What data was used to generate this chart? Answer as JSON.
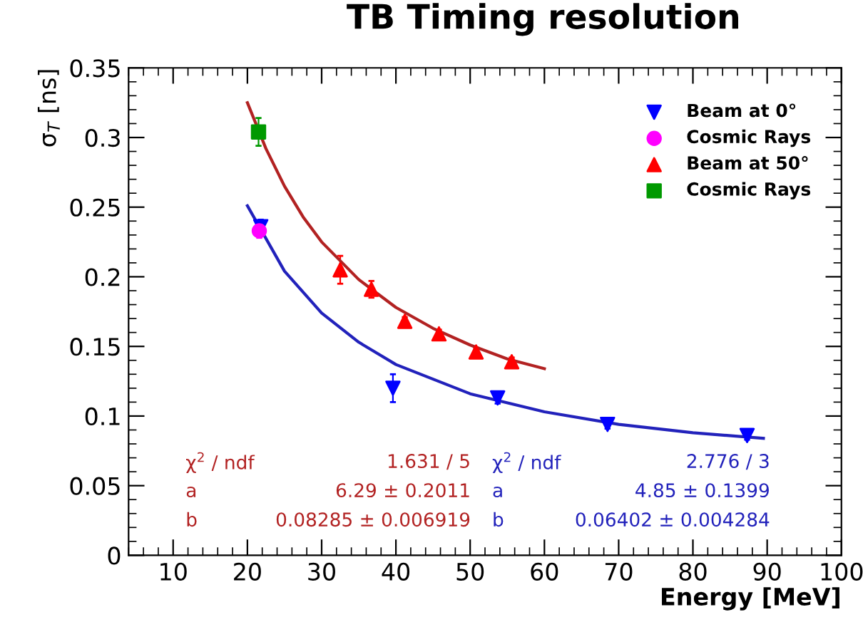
{
  "chart_data": {
    "type": "scatter",
    "title": "TB Timing resolution",
    "xlabel": "Energy [MeV]",
    "ylabel": "σ$_{T}$ [ns]",
    "xlim": [
      4,
      100
    ],
    "xticks": [
      10,
      20,
      30,
      40,
      50,
      60,
      70,
      80,
      90,
      100
    ],
    "ylim": [
      0,
      0.35
    ],
    "yticks": [
      0,
      0.05,
      0.1,
      0.15,
      0.2,
      0.25,
      0.3,
      0.35
    ],
    "grid": false,
    "legend": "top right",
    "series": [
      {
        "name": "Beam at 0°",
        "marker": "triangle_down",
        "color": "#0000ff",
        "x": [
          21.8,
          39.6,
          53.7,
          68.5,
          87.3
        ],
        "values": [
          0.236,
          0.12,
          0.113,
          0.094,
          0.086
        ],
        "errors": [
          0.005,
          0.01,
          0.004,
          0.003,
          0.003
        ]
      },
      {
        "name": "Cosmic Rays",
        "marker": "circle",
        "color": "#ff00ff",
        "x": [
          21.6
        ],
        "values": [
          0.233
        ],
        "errors": [
          0.005
        ]
      },
      {
        "name": "Beam at 50°",
        "marker": "triangle",
        "color": "#ff0000",
        "x": [
          32.5,
          36.7,
          41.2,
          45.8,
          50.8,
          55.6
        ],
        "values": [
          0.205,
          0.191,
          0.168,
          0.159,
          0.146,
          0.139
        ],
        "errors": [
          0.01,
          0.006,
          0.003,
          0.003,
          0.003,
          0.003
        ]
      },
      {
        "name": "Cosmic Rays",
        "marker": "square",
        "color": "#009900",
        "x": [
          21.5
        ],
        "values": [
          0.304
        ],
        "errors": [
          0.01
        ]
      },
      {
        "type": "line",
        "marker": "none",
        "color": "#b22222",
        "x": [
          20,
          22.5,
          25,
          27.5,
          30,
          35,
          40,
          45,
          50,
          55,
          60
        ],
        "values": [
          0.325,
          0.292,
          0.265,
          0.243,
          0.225,
          0.198,
          0.178,
          0.163,
          0.151,
          0.141,
          0.134
        ]
      },
      {
        "type": "line",
        "marker": "none",
        "color": "#2222bb",
        "x": [
          20,
          25,
          30,
          35,
          40,
          50,
          60,
          70,
          80,
          89.5
        ],
        "values": [
          0.251,
          0.204,
          0.174,
          0.153,
          0.137,
          0.116,
          0.103,
          0.094,
          0.088,
          0.084
        ]
      }
    ],
    "annotations": [
      "χ$^{2}$ / ndf",
      "1.631 / 5",
      "a",
      "6.29 ± 0.2011",
      "b",
      "0.08285 ± 0.006919",
      "χ$^{2}$ / ndf",
      "2.776 / 3",
      "a",
      "4.85 ± 0.1399",
      "b",
      "0.06402 ± 0.004284"
    ]
  }
}
